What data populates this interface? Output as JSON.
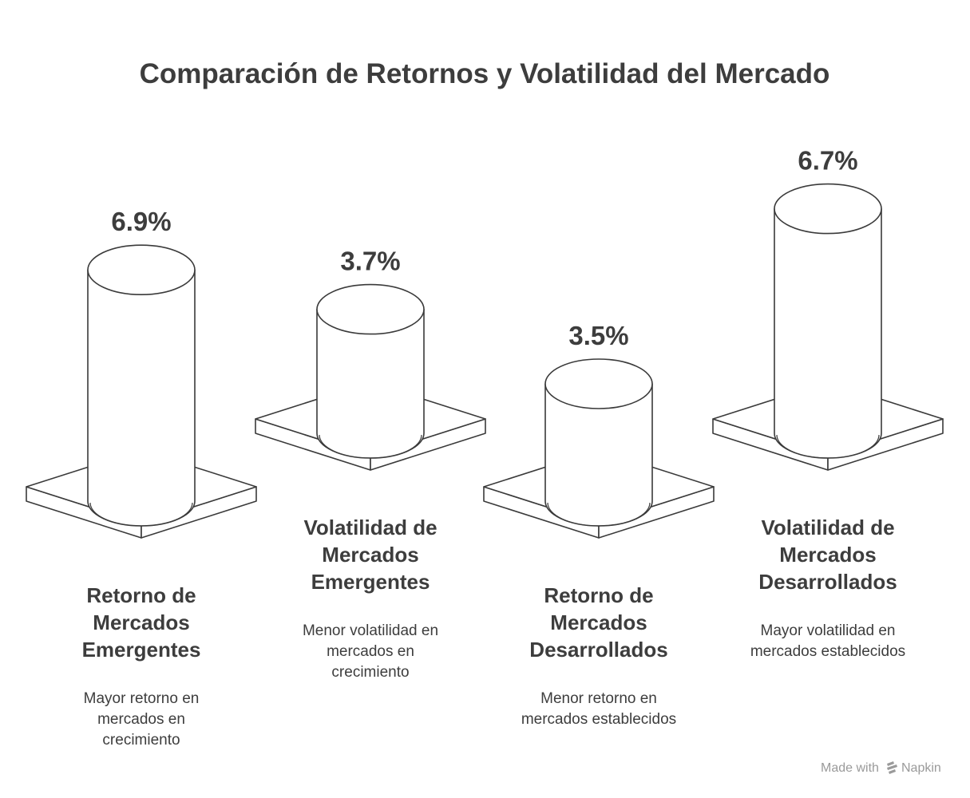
{
  "chart_data": {
    "type": "bar",
    "title": "Comparación de Retornos y Volatilidad del Mercado",
    "categories": [
      "Retorno de Mercados Emergentes",
      "Volatilidad de Mercados Emergentes",
      "Retorno de Mercados Desarrollados",
      "Volatilidad de Mercados Desarrollados"
    ],
    "values": [
      6.9,
      3.7,
      3.5,
      6.7
    ],
    "value_labels": [
      "6.9%",
      "3.7%",
      "3.5%",
      "6.7%"
    ],
    "descriptions": [
      "Mayor retorno en mercados en crecimiento",
      "Menor volatilidad en mercados en crecimiento",
      "Menor retorno en mercados establecidos",
      "Mayor volatilidad en mercados establecidos"
    ],
    "xlabel": "",
    "ylabel": "",
    "grid": false
  },
  "watermark": {
    "prefix": "Made with",
    "brand": "Napkin"
  },
  "colors": {
    "stroke": "#3a3a3a",
    "fill": "#ffffff",
    "text": "#3d3d3d",
    "watermark": "#9a9a9a"
  }
}
